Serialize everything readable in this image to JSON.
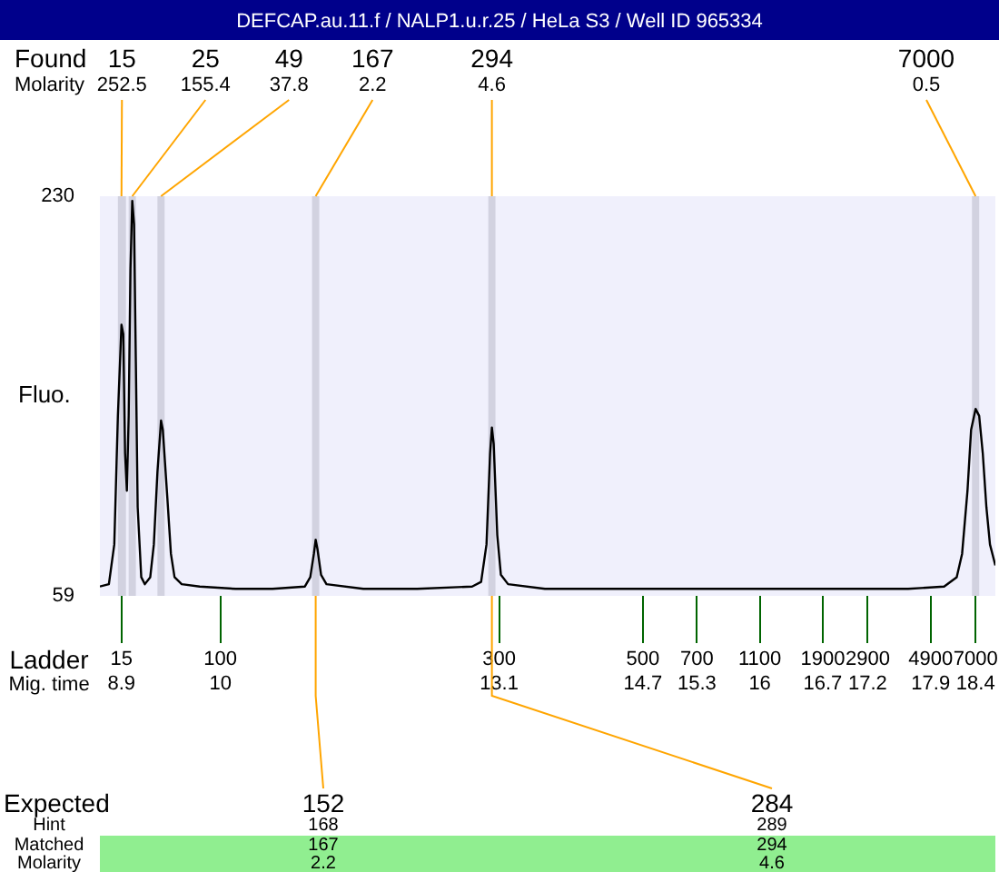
{
  "chart_data": {
    "type": "line",
    "title": "DEFCAP.au.11.f / NALP1.u.r.25 / HeLa S3 / Well ID 965334",
    "ylabel": "Fluo.",
    "xlabel": "Mig. time",
    "x": [
      8.66,
      8.76,
      8.82,
      8.86,
      8.9,
      8.92,
      8.94,
      8.96,
      8.98,
      9.0,
      9.02,
      9.04,
      9.06,
      9.08,
      9.12,
      9.16,
      9.22,
      9.26,
      9.3,
      9.34,
      9.36,
      9.41,
      9.45,
      9.49,
      9.57,
      9.77,
      10.17,
      10.58,
      10.94,
      11.0,
      11.04,
      11.06,
      11.08,
      11.12,
      11.18,
      11.59,
      12.19,
      12.8,
      12.9,
      12.96,
      13.0,
      13.02,
      13.04,
      13.08,
      13.12,
      13.2,
      13.61,
      14.62,
      15.63,
      16.64,
      17.65,
      18.05,
      18.19,
      18.25,
      18.31,
      18.35,
      18.4,
      18.44,
      18.48,
      18.52,
      18.56,
      18.62
    ],
    "series": [
      {
        "color": "#000000",
        "values": [
          63,
          64,
          81,
          136,
          175,
          171,
          120,
          104,
          136,
          199,
          228,
          218,
          159,
          97,
          67,
          64,
          67,
          81,
          112,
          134,
          130,
          101,
          77,
          67,
          64,
          63,
          62,
          62,
          63,
          67,
          77,
          83,
          79,
          68,
          64,
          62,
          62,
          63,
          65,
          81,
          120,
          131,
          124,
          85,
          68,
          64,
          62,
          62,
          62,
          62,
          62,
          63,
          67,
          77,
          104,
          130,
          139,
          136,
          120,
          97,
          81,
          72
        ]
      }
    ],
    "xlim": [
      8.66,
      18.62
    ],
    "xticks": [
      8.9,
      10,
      13.1,
      14.7,
      15.3,
      16,
      16.7,
      17.2,
      17.9,
      18.4
    ],
    "ylim": [
      59,
      230
    ],
    "yticks": [
      59,
      230
    ],
    "bands": [
      {
        "axis": "x",
        "from": 8.86,
        "to": 8.95,
        "label": "15",
        "color": "#d2d2e0"
      },
      {
        "axis": "x",
        "from": 8.98,
        "to": 9.06,
        "label": "25",
        "color": "#d2d2e0"
      },
      {
        "axis": "x",
        "from": 9.3,
        "to": 9.38,
        "label": "49",
        "color": "#d2d2e0"
      },
      {
        "axis": "x",
        "from": 11.02,
        "to": 11.1,
        "label": "167",
        "color": "#d2d2e0"
      },
      {
        "axis": "x",
        "from": 12.98,
        "to": 13.06,
        "label": "294",
        "color": "#d2d2e0"
      },
      {
        "axis": "x",
        "from": 18.36,
        "to": 18.44,
        "label": "7000",
        "color": "#d2d2e0"
      }
    ],
    "annotations": [
      "Found",
      "Molarity",
      "Ladder",
      "Expected",
      "Hint",
      "Matched",
      "Molarity",
      {
        "text": "252.5",
        "x": 8.9,
        "y": 230
      },
      {
        "text": "155.4",
        "x": 9.02,
        "y": 230
      },
      {
        "text": "37.8",
        "x": 9.34,
        "y": 230
      },
      {
        "text": "2.2",
        "x": 11.06,
        "y": 230
      },
      {
        "text": "4.6",
        "x": 13.02,
        "y": 230
      },
      {
        "text": "0.5",
        "x": 18.4,
        "y": 230
      },
      "15",
      "100",
      "300",
      "500",
      "700",
      "1100",
      "1900",
      "2900",
      "4900",
      "7000",
      {
        "text": "152",
        "x": 11.06,
        "y": 59
      },
      "168",
      "167",
      "2.2",
      {
        "text": "284",
        "x": 13.02,
        "y": 59
      },
      "289",
      "294",
      "4.6"
    ],
    "grid": false,
    "legend": false
  }
}
